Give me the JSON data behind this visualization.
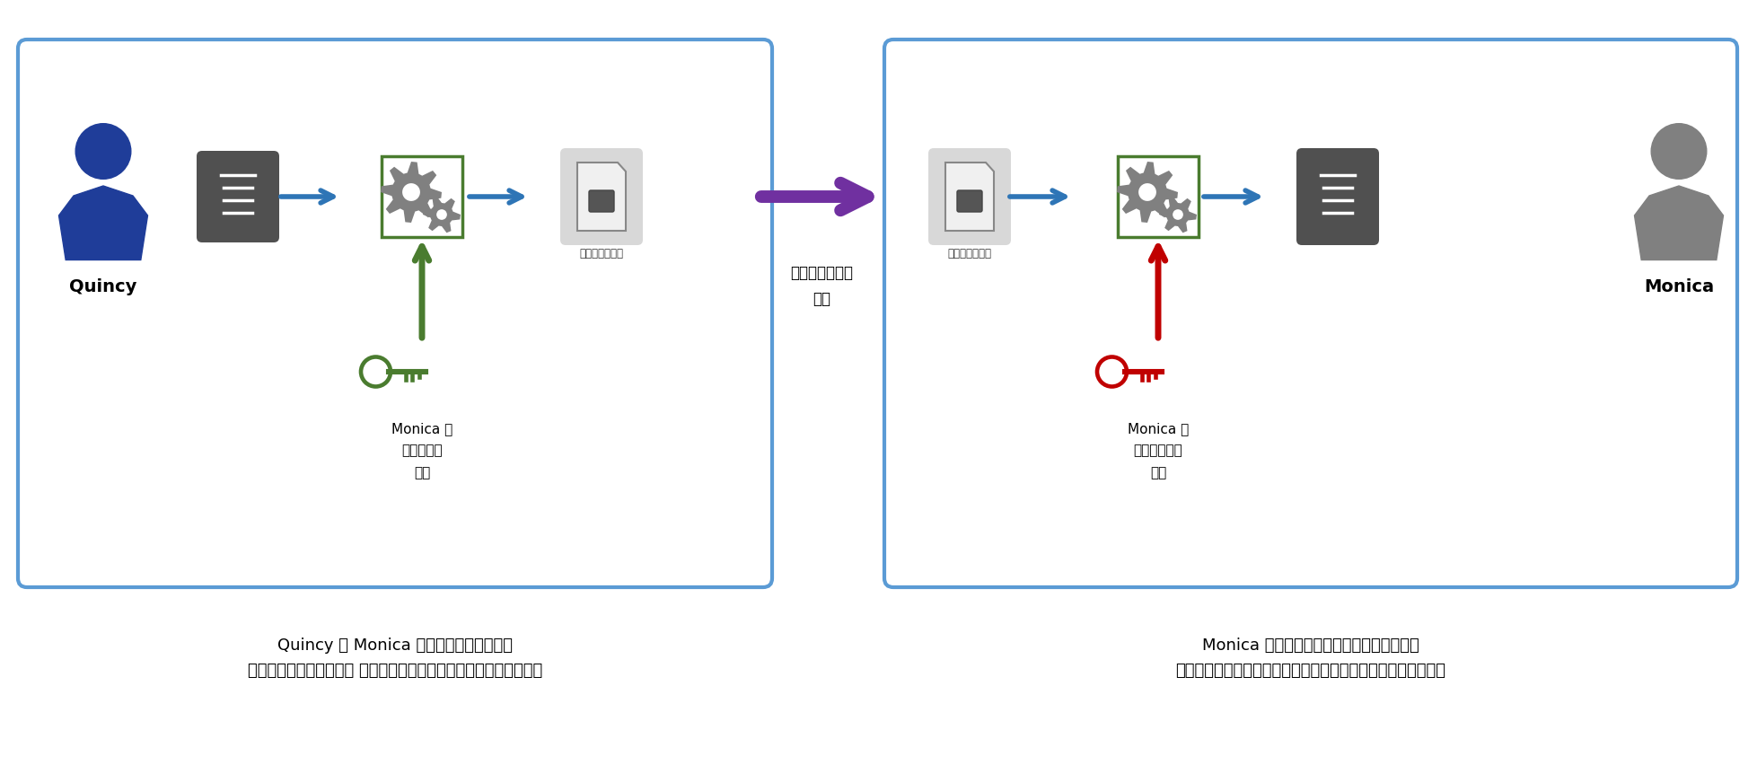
{
  "bg_color": "#ffffff",
  "box1_color": "#5b9bd5",
  "box2_color": "#5b9bd5",
  "box_bg": "#ffffff",
  "gear_box_border": "#4a7c2f",
  "encrypt_box_bg": "#e8e8e8",
  "dark_icon_bg": "#505050",
  "light_icon_bg": "#d8d8d8",
  "blue_arrow": "#2e75b6",
  "purple_arrow": "#7030a0",
  "green_arrow": "#4a7c2f",
  "red_arrow": "#c00000",
  "public_key_color": "#4a7c2f",
  "private_key_color": "#c00000",
  "quincy_body": "#1f3d99",
  "monica_body": "#808080",
  "gear_color": "#808080",
  "text_color": "#000000",
  "caption_left": "Quincy が Monica の公開キーを使用し、\n自分のプレーンテキスト メッセージを暗号化テキストに変えます。",
  "caption_right": "Monica はその暗号化テキストを受け取り、\n自分の秘密キーを使用して元のプレーンテキストに戻します。",
  "send_label": "暗号化テキスト\n送信",
  "public_key_label": "Monica の\nパブリック\nキー",
  "private_key_label": "Monica の\nプライベート\nキー",
  "plaintext_label": "プレーンテキスト",
  "ciphertext_label": "暗号化テキスト",
  "quincy_label": "Quincy",
  "monica_label": "Monica"
}
